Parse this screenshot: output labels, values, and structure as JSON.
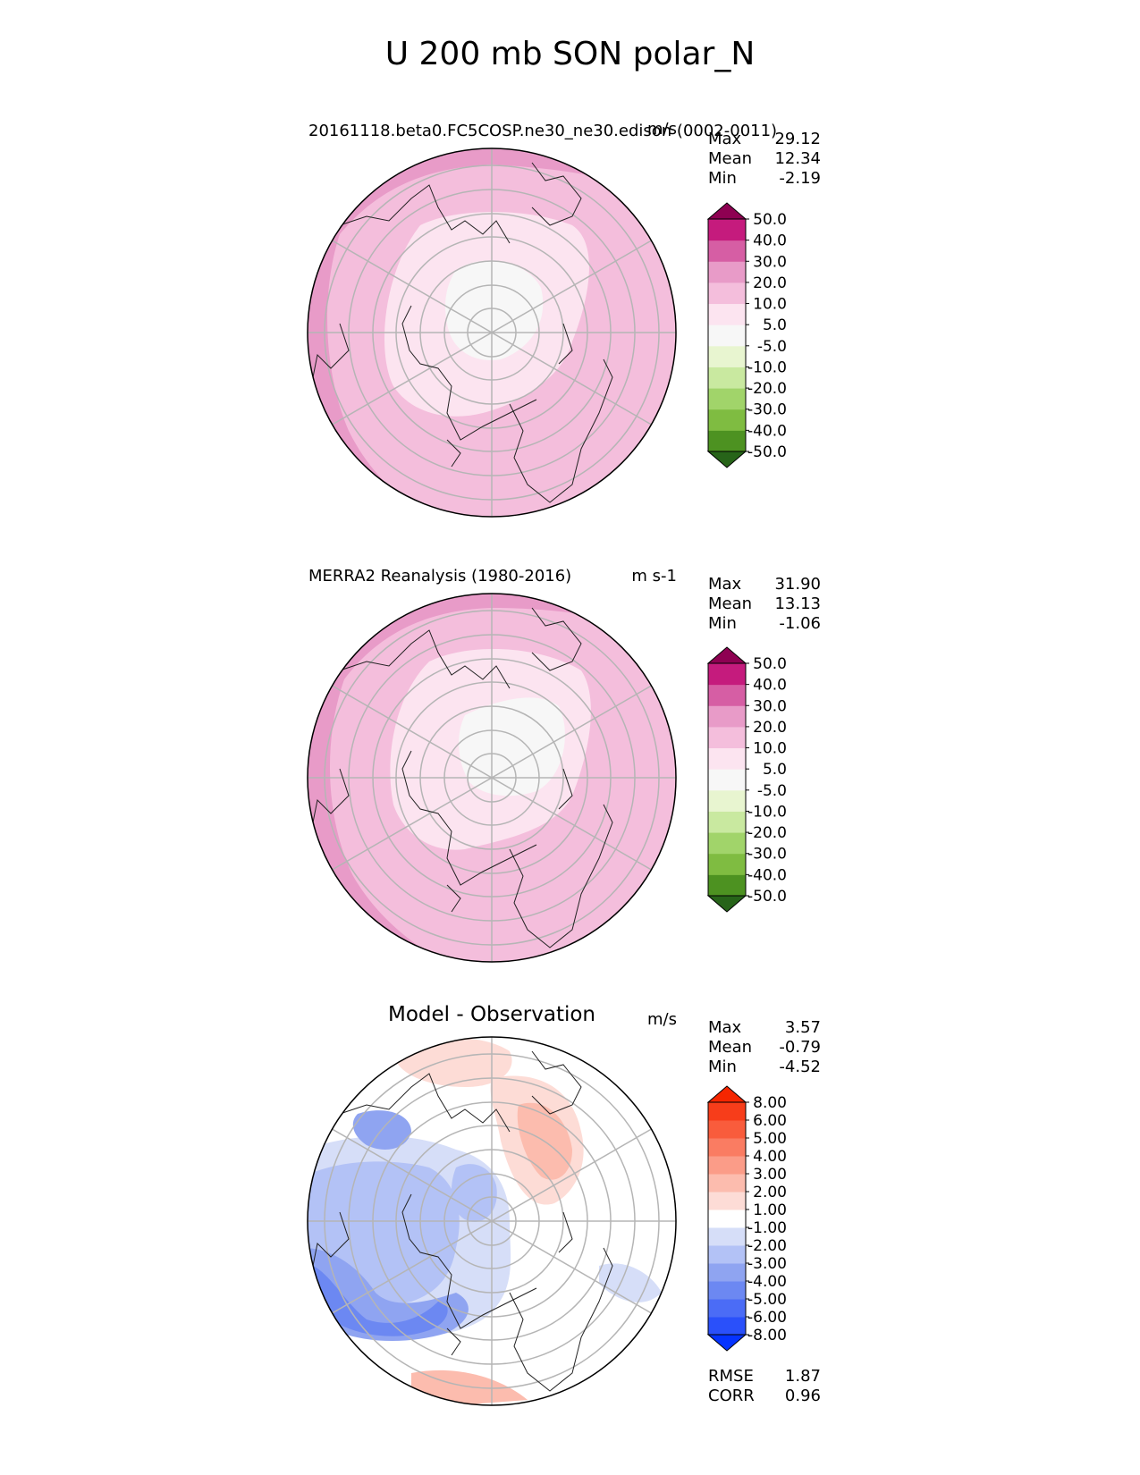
{
  "suptitle": "U 200 mb SON polar_N",
  "panels": [
    {
      "title_left": "20161118.beta0.FC5COSP.ne30_ne30.edison (0002-0011)",
      "title_center": "",
      "title_right": "m/s",
      "stats": [
        {
          "label": "Max",
          "value": "29.12"
        },
        {
          "label": "Mean",
          "value": "12.34"
        },
        {
          "label": "Min",
          "value": "-2.19"
        }
      ],
      "colorbar": {
        "colors": [
          "#276419",
          "#4d9221",
          "#7fbc41",
          "#a1d46a",
          "#c9e9a0",
          "#e8f5d0",
          "#f7f7f7",
          "#fce4f0",
          "#f4bedc",
          "#e89bc8",
          "#d65ea4",
          "#c51b7d",
          "#8e0152"
        ],
        "ticks": [
          "-50.0",
          "-40.0",
          "-30.0",
          "-20.0",
          "-10.0",
          "-5.0",
          "5.0",
          "10.0",
          "20.0",
          "30.0",
          "40.0",
          "50.0"
        ]
      }
    },
    {
      "title_left": "MERRA2 Reanalysis (1980-2016)",
      "title_center": "",
      "title_right": "m s-1",
      "stats": [
        {
          "label": "Max",
          "value": "31.90"
        },
        {
          "label": "Mean",
          "value": "13.13"
        },
        {
          "label": "Min",
          "value": "-1.06"
        }
      ],
      "colorbar": {
        "colors": [
          "#276419",
          "#4d9221",
          "#7fbc41",
          "#a1d46a",
          "#c9e9a0",
          "#e8f5d0",
          "#f7f7f7",
          "#fce4f0",
          "#f4bedc",
          "#e89bc8",
          "#d65ea4",
          "#c51b7d",
          "#8e0152"
        ],
        "ticks": [
          "-50.0",
          "-40.0",
          "-30.0",
          "-20.0",
          "-10.0",
          "-5.0",
          "5.0",
          "10.0",
          "20.0",
          "30.0",
          "40.0",
          "50.0"
        ]
      }
    },
    {
      "title_left": "",
      "title_center": "Model - Observation",
      "title_right": "m/s",
      "stats": [
        {
          "label": "Max",
          "value": "3.57"
        },
        {
          "label": "Mean",
          "value": "-0.79"
        },
        {
          "label": "Min",
          "value": "-4.52"
        }
      ],
      "colorbar": {
        "colors": [
          "#0533ff",
          "#2a50fa",
          "#4b6cf6",
          "#6c88f2",
          "#8fa4f1",
          "#b3c2f6",
          "#d6def8",
          "#ffffff",
          "#fddcd6",
          "#fcbcae",
          "#fb9c88",
          "#fa7c62",
          "#f95c3c",
          "#f73d1a",
          "#f52600"
        ],
        "ticks": [
          "-8.00",
          "-6.00",
          "-5.00",
          "-4.00",
          "-3.00",
          "-2.00",
          "-1.00",
          "1.00",
          "2.00",
          "3.00",
          "4.00",
          "5.00",
          "6.00",
          "8.00"
        ]
      },
      "footer_stats": [
        {
          "label": "RMSE",
          "value": "1.87"
        },
        {
          "label": "CORR",
          "value": "0.96"
        }
      ]
    }
  ]
}
